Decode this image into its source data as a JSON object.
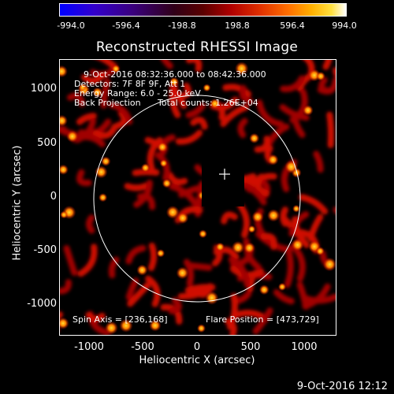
{
  "colorbar": {
    "ticks": [
      "-994.0",
      "-596.4",
      "-198.8",
      "198.8",
      "596.4",
      "994.0"
    ]
  },
  "plot": {
    "title": "Reconstructed RHESSI Image",
    "time_range": "9-Oct-2016 08:32:36.000 to 08:42:36.000",
    "detectors": "Detectors: 7F 8F 9F, Att 1",
    "energy_range": "Energy Range: 6.0 - 25.0 keV",
    "method": "Back Projection",
    "total_counts": "Total counts: 1.26E+04",
    "spin_axis": "Spin Axis = [236,168]",
    "flare_position": "Flare Position = [473,729]",
    "xlabel": "Heliocentric X (arcsec)",
    "ylabel": "Heliocentric Y (arcsec)",
    "xticks": [
      "-1000",
      "-500",
      "0",
      "500",
      "1000"
    ],
    "yticks": [
      "1000",
      "500",
      "0",
      "-500",
      "-1000"
    ]
  },
  "footer": {
    "date": "9-Oct-2016 12:12"
  },
  "colors": {
    "background": "#000000",
    "foreground": "#ffffff"
  }
}
